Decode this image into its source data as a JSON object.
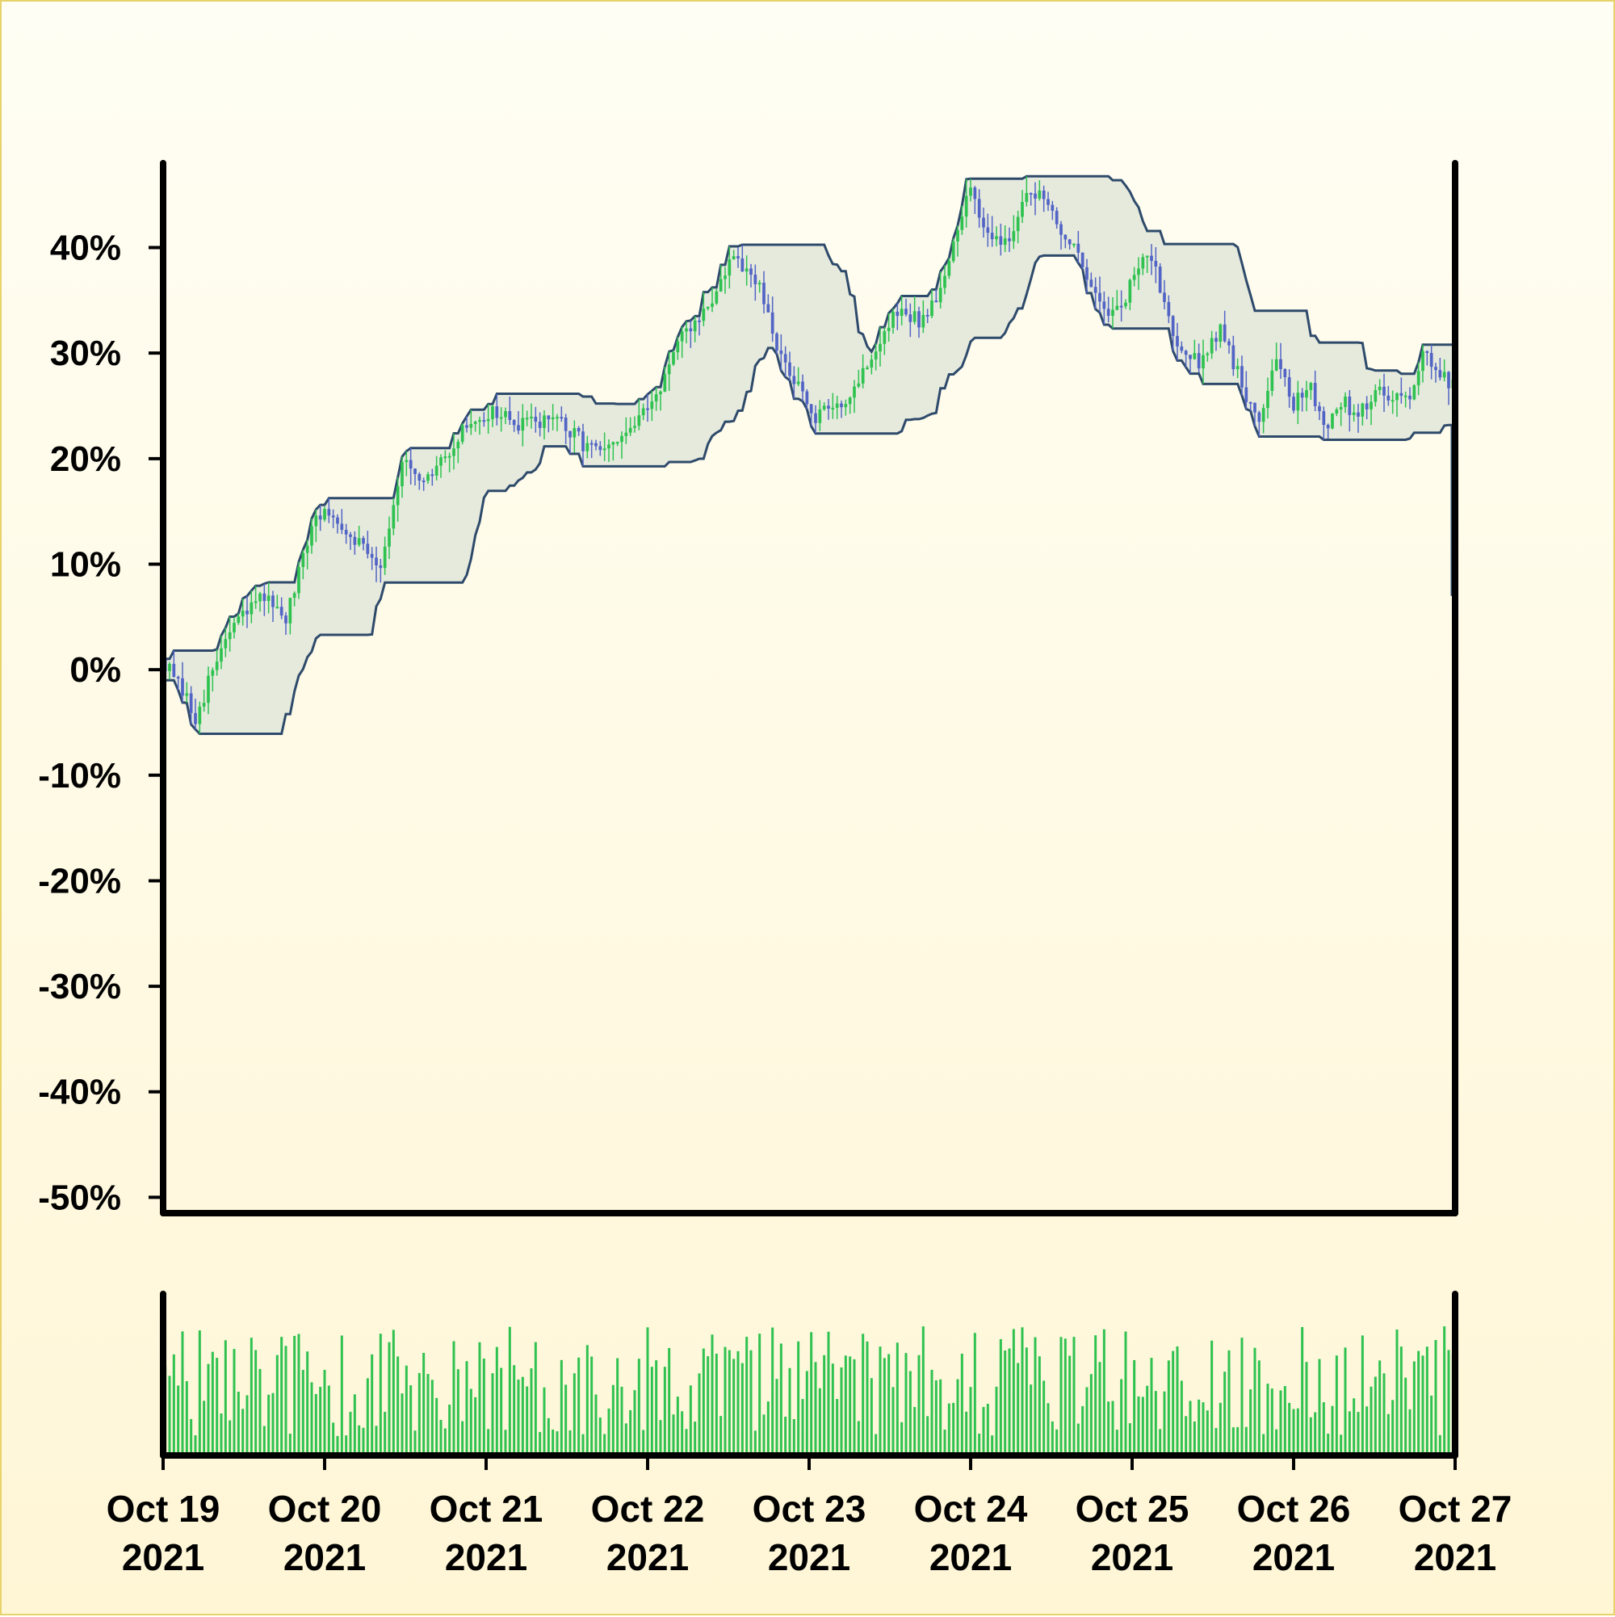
{
  "chart_data": {
    "type": "candlestick",
    "x_ticks": [
      {
        "line1": "Oct 19",
        "line2": "2021"
      },
      {
        "line1": "Oct 20",
        "line2": "2021"
      },
      {
        "line1": "Oct 21",
        "line2": "2021"
      },
      {
        "line1": "Oct 22",
        "line2": "2021"
      },
      {
        "line1": "Oct 23",
        "line2": "2021"
      },
      {
        "line1": "Oct 24",
        "line2": "2021"
      },
      {
        "line1": "Oct 25",
        "line2": "2021"
      },
      {
        "line1": "Oct 26",
        "line2": "2021"
      },
      {
        "line1": "Oct 27",
        "line2": "2021"
      }
    ],
    "x_range_days": [
      0,
      8
    ],
    "y_ticks": [
      40,
      30,
      20,
      10,
      0,
      -10,
      -20,
      -30,
      -40,
      -50
    ],
    "y_tick_labels": [
      "40%",
      "30%",
      "20%",
      "10%",
      "0%",
      "-10%",
      "-20%",
      "-30%",
      "-40%",
      "-50%"
    ],
    "ylim": [
      -51.5,
      48
    ],
    "price_keypoints": [
      [
        0.0,
        1.0
      ],
      [
        0.2,
        -4.5
      ],
      [
        0.4,
        3.5
      ],
      [
        0.65,
        7.5
      ],
      [
        0.75,
        4.0
      ],
      [
        0.95,
        15.0
      ],
      [
        1.1,
        14.0
      ],
      [
        1.35,
        10.0
      ],
      [
        1.48,
        20.0
      ],
      [
        1.6,
        17.0
      ],
      [
        1.9,
        23.5
      ],
      [
        2.05,
        24.5
      ],
      [
        2.2,
        23.0
      ],
      [
        2.4,
        24.0
      ],
      [
        2.6,
        21.5
      ],
      [
        2.75,
        20.5
      ],
      [
        3.0,
        24.5
      ],
      [
        3.2,
        31.0
      ],
      [
        3.4,
        35.0
      ],
      [
        3.52,
        39.0
      ],
      [
        3.7,
        36.0
      ],
      [
        3.8,
        30.0
      ],
      [
        3.92,
        27.5
      ],
      [
        4.02,
        23.5
      ],
      [
        4.25,
        26.0
      ],
      [
        4.4,
        30.0
      ],
      [
        4.55,
        34.0
      ],
      [
        4.7,
        33.0
      ],
      [
        4.85,
        37.5
      ],
      [
        5.0,
        46.0
      ],
      [
        5.1,
        41.5
      ],
      [
        5.2,
        40.5
      ],
      [
        5.25,
        41.5
      ],
      [
        5.35,
        44.5
      ],
      [
        5.45,
        45.5
      ],
      [
        5.55,
        42.0
      ],
      [
        5.7,
        38.0
      ],
      [
        5.85,
        34.0
      ],
      [
        5.95,
        34.5
      ],
      [
        6.0,
        37.0
      ],
      [
        6.08,
        39.5
      ],
      [
        6.15,
        37.5
      ],
      [
        6.25,
        32.0
      ],
      [
        6.4,
        29.0
      ],
      [
        6.55,
        32.5
      ],
      [
        6.7,
        26.0
      ],
      [
        6.8,
        24.0
      ],
      [
        6.9,
        30.0
      ],
      [
        7.0,
        25.0
      ],
      [
        7.1,
        27.0
      ],
      [
        7.2,
        23.0
      ],
      [
        7.3,
        25.5
      ],
      [
        7.4,
        24.0
      ],
      [
        7.5,
        26.5
      ],
      [
        7.65,
        26.0
      ],
      [
        7.75,
        26.5
      ],
      [
        7.8,
        30.0
      ],
      [
        7.88,
        28.0
      ],
      [
        8.0,
        27.0
      ]
    ],
    "candle_count": 300,
    "channel_window_days": 0.5,
    "final_drop_value": 7.0,
    "colors": {
      "up": "#2fc250",
      "down": "#5264c5",
      "channel_line": "#2e4a6b",
      "channel_fill": "#e6eadd",
      "axis": "#000000",
      "volume": "#2fc250"
    }
  }
}
